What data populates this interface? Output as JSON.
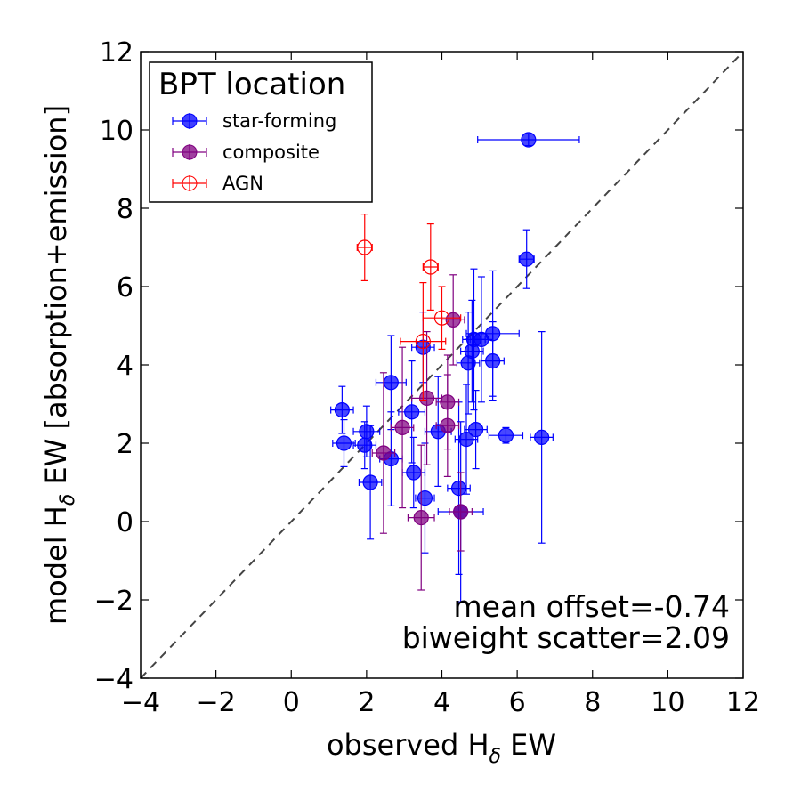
{
  "chart_data": {
    "type": "scatter",
    "xlabel": "observed H",
    "xlabel_sub": "δ",
    "xlabel_tail": " EW",
    "ylabel": "model H",
    "ylabel_sub": "δ",
    "ylabel_tail": " EW [absorption+emission]",
    "xlim": [
      -4,
      12
    ],
    "ylim": [
      -4,
      12
    ],
    "xticks": [
      -4,
      -2,
      0,
      2,
      4,
      6,
      8,
      10,
      12
    ],
    "yticks": [
      -4,
      -2,
      0,
      2,
      4,
      6,
      8,
      10,
      12
    ],
    "xtick_labels": [
      "−4",
      "−2",
      "0",
      "2",
      "4",
      "6",
      "8",
      "10",
      "12"
    ],
    "ytick_labels": [
      "−4",
      "−2",
      "0",
      "2",
      "4",
      "6",
      "8",
      "10",
      "12"
    ],
    "one_to_one_line": true,
    "legend": {
      "title": "BPT location",
      "location": "top-left",
      "entries": [
        "star-forming",
        "composite",
        "AGN"
      ]
    },
    "annotations": [
      "mean offset=-0.74",
      "biweight scatter=2.09"
    ],
    "colors": {
      "star-forming": "#0000ff",
      "composite": "#800080",
      "AGN": "#ff0000",
      "diagonal": "#444444"
    },
    "series": [
      {
        "name": "star-forming",
        "filled": true,
        "points": [
          {
            "x": 6.3,
            "y": 9.75,
            "xerr": 1.35,
            "yerr": 0.15
          },
          {
            "x": 6.25,
            "y": 6.7,
            "xerr": 0.2,
            "yerr": 0.75
          },
          {
            "x": 1.35,
            "y": 2.85,
            "xerr": 0.3,
            "yerr": 0.6
          },
          {
            "x": 1.4,
            "y": 2.0,
            "xerr": 0.3,
            "yerr": 0.6
          },
          {
            "x": 1.95,
            "y": 1.95,
            "xerr": 0.3,
            "yerr": 0.6
          },
          {
            "x": 2.0,
            "y": 2.3,
            "xerr": 0.35,
            "yerr": 0.65
          },
          {
            "x": 2.1,
            "y": 1.0,
            "xerr": 0.3,
            "yerr": 1.45
          },
          {
            "x": 2.65,
            "y": 1.6,
            "xerr": 0.3,
            "yerr": 1.2
          },
          {
            "x": 2.65,
            "y": 3.55,
            "xerr": 0.4,
            "yerr": 1.2
          },
          {
            "x": 3.2,
            "y": 2.8,
            "xerr": 0.35,
            "yerr": 1.3
          },
          {
            "x": 3.25,
            "y": 1.25,
            "xerr": 0.3,
            "yerr": 0.9
          },
          {
            "x": 3.5,
            "y": 4.45,
            "xerr": 0.3,
            "yerr": 0.9
          },
          {
            "x": 3.55,
            "y": 0.6,
            "xerr": 0.25,
            "yerr": 1.4
          },
          {
            "x": 3.9,
            "y": 2.3,
            "xerr": 0.35,
            "yerr": 1.4
          },
          {
            "x": 4.45,
            "y": 0.85,
            "xerr": 0.3,
            "yerr": 2.2
          },
          {
            "x": 4.5,
            "y": 0.25,
            "xerr": 0.6,
            "yerr": 2.3
          },
          {
            "x": 4.65,
            "y": 2.1,
            "xerr": 0.3,
            "yerr": 1.4
          },
          {
            "x": 4.7,
            "y": 4.05,
            "xerr": 0.3,
            "yerr": 1.3
          },
          {
            "x": 4.8,
            "y": 4.35,
            "xerr": 0.3,
            "yerr": 1.3
          },
          {
            "x": 4.85,
            "y": 4.65,
            "xerr": 0.3,
            "yerr": 1.8
          },
          {
            "x": 4.9,
            "y": 2.35,
            "xerr": 0.3,
            "yerr": 1.0
          },
          {
            "x": 5.05,
            "y": 4.65,
            "xerr": 0.3,
            "yerr": 1.6
          },
          {
            "x": 5.35,
            "y": 4.8,
            "xerr": 0.7,
            "yerr": 1.6
          },
          {
            "x": 5.35,
            "y": 4.1,
            "xerr": 0.3,
            "yerr": 1.0
          },
          {
            "x": 5.7,
            "y": 2.2,
            "xerr": 0.45,
            "yerr": 0.2
          },
          {
            "x": 6.65,
            "y": 2.15,
            "xerr": 0.3,
            "yerr": 2.7
          }
        ]
      },
      {
        "name": "composite",
        "filled": true,
        "points": [
          {
            "x": 2.45,
            "y": 1.75,
            "xerr": 0.3,
            "yerr": 2.05
          },
          {
            "x": 2.95,
            "y": 2.4,
            "xerr": 0.3,
            "yerr": 2.05
          },
          {
            "x": 3.45,
            "y": 0.1,
            "xerr": 0.35,
            "yerr": 1.85
          },
          {
            "x": 3.6,
            "y": 3.15,
            "xerr": 0.4,
            "yerr": 1.7
          },
          {
            "x": 4.15,
            "y": 2.45,
            "xerr": 0.3,
            "yerr": 1.3
          },
          {
            "x": 4.15,
            "y": 3.05,
            "xerr": 0.3,
            "yerr": 1.2
          },
          {
            "x": 4.3,
            "y": 5.15,
            "xerr": 0.3,
            "yerr": 1.15
          },
          {
            "x": 4.5,
            "y": 0.25,
            "xerr": 0.3,
            "yerr": 1.0
          }
        ]
      },
      {
        "name": "AGN",
        "filled": false,
        "points": [
          {
            "x": 1.95,
            "y": 7.0,
            "xerr": 0.2,
            "yerr": 0.85
          },
          {
            "x": 3.7,
            "y": 6.5,
            "xerr": 0.2,
            "yerr": 1.1
          },
          {
            "x": 3.5,
            "y": 4.6,
            "xerr": 0.6,
            "yerr": 1.5
          },
          {
            "x": 4.0,
            "y": 5.2,
            "xerr": 0.5,
            "yerr": 0.8
          }
        ]
      }
    ]
  }
}
